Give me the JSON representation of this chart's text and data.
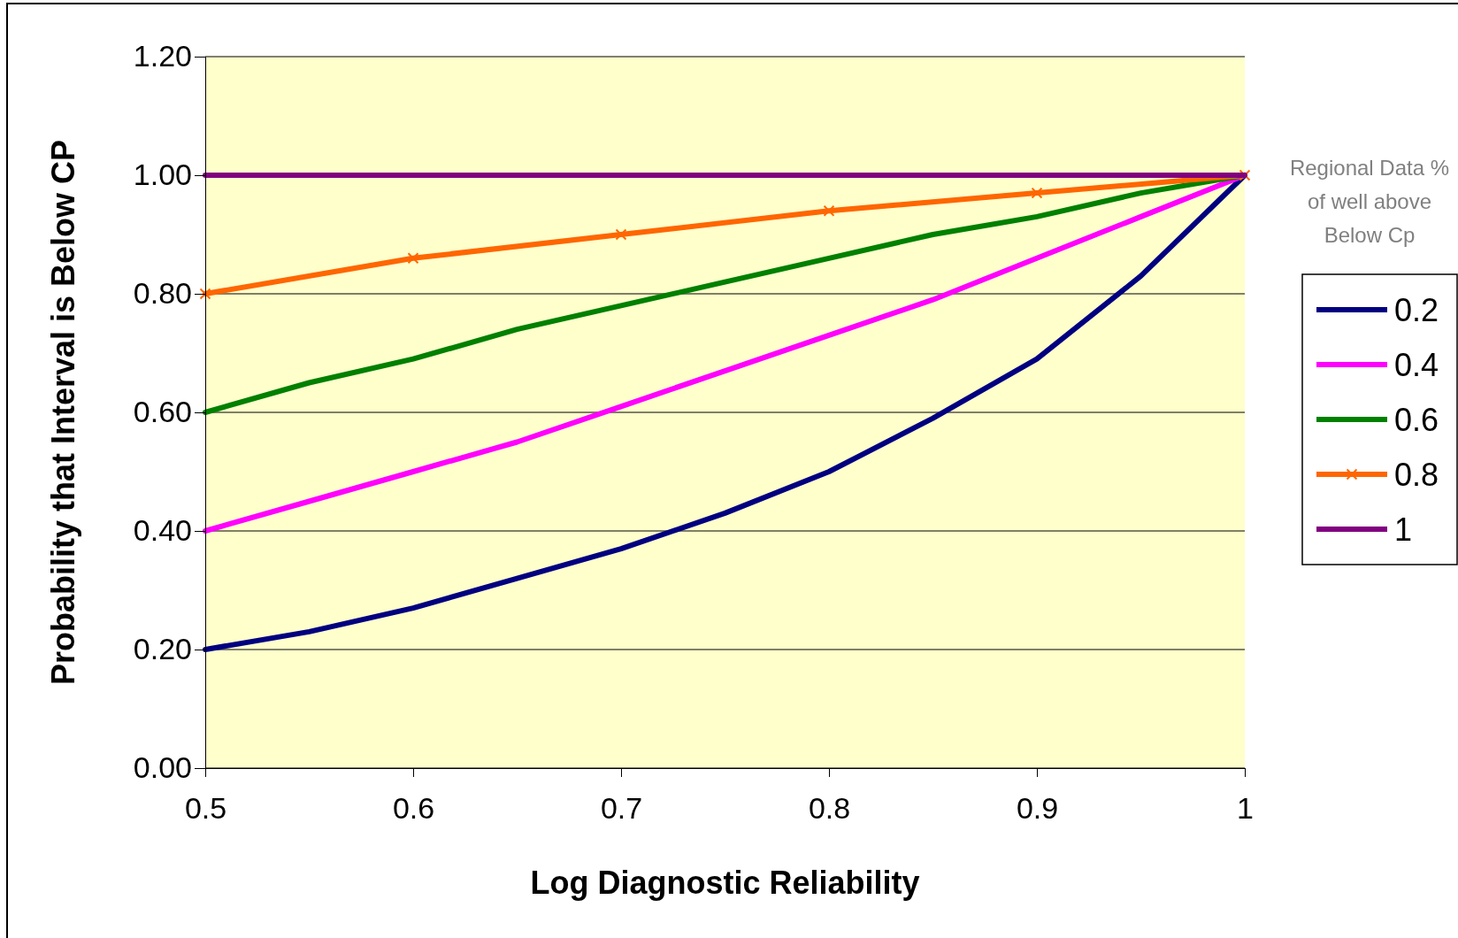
{
  "chart_data": {
    "type": "line",
    "xlabel": "Log Diagnostic Reliability",
    "ylabel": "Probability that Interval is Below CP",
    "legend_title": "Regional Data % of well above Below Cp",
    "legend": "right",
    "grid": "y",
    "x": [
      0.5,
      0.55,
      0.6,
      0.65,
      0.7,
      0.75,
      0.8,
      0.85,
      0.9,
      0.95,
      1
    ],
    "xlim": [
      0.5,
      1
    ],
    "xticks": [
      0.5,
      0.6,
      0.7,
      0.8,
      0.9,
      1
    ],
    "ylim": [
      0,
      1.2
    ],
    "yticks": [
      {
        "value": 0,
        "label": "0.00"
      },
      {
        "value": 0.2,
        "label": "0.20"
      },
      {
        "value": 0.4,
        "label": "0.40"
      },
      {
        "value": 0.6,
        "label": "0.60"
      },
      {
        "value": 0.8,
        "label": "0.80"
      },
      {
        "value": 1,
        "label": "1.00"
      },
      {
        "value": 1.2,
        "label": "1.20"
      }
    ],
    "series": [
      {
        "name": "0.2",
        "color": "#000080",
        "values": [
          0.2,
          0.23,
          0.27,
          0.32,
          0.37,
          0.43,
          0.5,
          0.59,
          0.69,
          0.83,
          1
        ]
      },
      {
        "name": "0.4",
        "color": "#ff00ff",
        "values": [
          0.4,
          0.45,
          0.5,
          0.55,
          0.61,
          0.67,
          0.73,
          0.79,
          0.86,
          0.93,
          1
        ]
      },
      {
        "name": "0.6",
        "color": "#008000",
        "values": [
          0.6,
          0.65,
          0.69,
          0.74,
          0.78,
          0.82,
          0.86,
          0.9,
          0.93,
          0.97,
          1
        ]
      },
      {
        "name": "0.8",
        "color": "#ff6600",
        "marker": "cross",
        "x": [
          0.5,
          0.6,
          0.7,
          0.8,
          0.9,
          1
        ],
        "values": [
          0.8,
          0.86,
          0.9,
          0.94,
          0.97,
          1
        ]
      },
      {
        "name": "1",
        "color": "#800080",
        "values": [
          1,
          1,
          1,
          1,
          1,
          1,
          1,
          1,
          1,
          1,
          1
        ]
      }
    ]
  }
}
